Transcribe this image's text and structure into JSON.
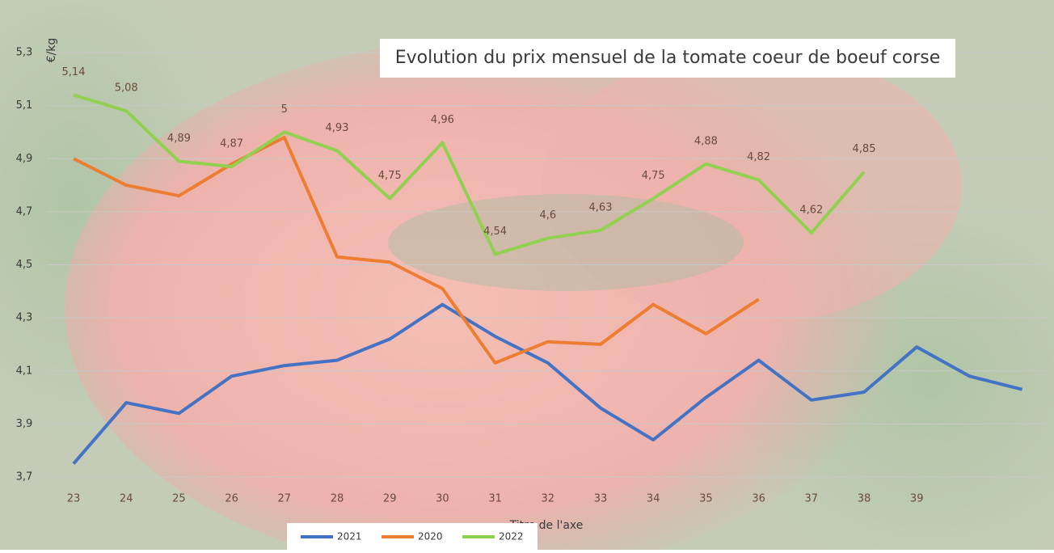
{
  "chart_data": {
    "type": "line",
    "title": "Evolution du prix mensuel de la tomate coeur de boeuf corse",
    "y_label": "€/kg",
    "x_label": "Titre de l'axe",
    "categories": [
      "23",
      "24",
      "25",
      "26",
      "27",
      "28",
      "29",
      "30",
      "31",
      "32",
      "33",
      "34",
      "35",
      "36",
      "37",
      "38",
      "39",
      null,
      null
    ],
    "series": [
      {
        "name": "2021",
        "color": "#4472c4",
        "values": [
          3.75,
          3.98,
          3.94,
          4.08,
          4.12,
          4.14,
          4.22,
          4.35,
          4.23,
          4.13,
          3.96,
          3.84,
          4.0,
          4.14,
          3.99,
          4.02,
          4.19,
          4.08,
          4.03
        ]
      },
      {
        "name": "2020",
        "color": "#ed7d31",
        "values": [
          4.9,
          4.8,
          4.76,
          4.88,
          4.98,
          4.53,
          4.51,
          4.41,
          4.13,
          4.21,
          4.2,
          4.35,
          4.24,
          4.37,
          null,
          null,
          null,
          null,
          null
        ]
      },
      {
        "name": "2022",
        "color": "#92d050",
        "values": [
          5.14,
          5.08,
          4.89,
          4.87,
          5,
          4.93,
          4.75,
          4.96,
          4.54,
          4.6,
          4.63,
          4.75,
          4.88,
          4.82,
          4.62,
          4.85,
          null,
          null,
          null
        ],
        "value_labels": [
          "5,14",
          "5,08",
          "4,89",
          "4,87",
          "5",
          "4,93",
          "4,75",
          "4,96",
          "4,54",
          "4,6",
          "4,63",
          "4,75",
          "4,88",
          "4,82",
          "4,62",
          "4,85",
          null,
          null,
          null
        ]
      }
    ],
    "ylim": [
      3.7,
      5.3
    ],
    "yticks": [
      {
        "value": 3.7,
        "label": "3,7"
      },
      {
        "value": 3.9,
        "label": "3,9"
      },
      {
        "value": 4.1,
        "label": "4,1"
      },
      {
        "value": 4.3,
        "label": "4,3"
      },
      {
        "value": 4.5,
        "label": "4,5"
      },
      {
        "value": 4.7,
        "label": "4,7"
      },
      {
        "value": 4.9,
        "label": "4,9"
      },
      {
        "value": 5.1,
        "label": "5,1"
      },
      {
        "value": 5.3,
        "label": "5,3"
      }
    ],
    "grid": true,
    "legend": "bottom"
  }
}
